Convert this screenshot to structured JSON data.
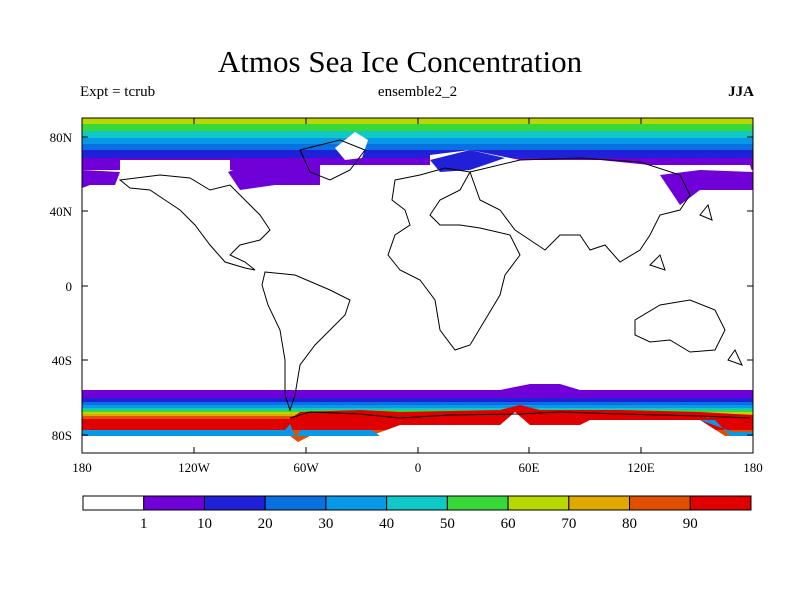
{
  "title": "Atmos Sea Ice Concentration",
  "expt_label": "Expt = tcrub",
  "run_label": "ensemble2_2",
  "season_label": "JJA",
  "lat_ticks": [
    "80N",
    "40N",
    "0",
    "40S",
    "80S"
  ],
  "lon_ticks": [
    "180",
    "120W",
    "60W",
    "0",
    "60E",
    "120E",
    "180"
  ],
  "colorbar": {
    "labels": [
      "1",
      "10",
      "20",
      "30",
      "40",
      "50",
      "60",
      "70",
      "80",
      "90"
    ],
    "colors": [
      "#ffffff",
      "#7000d8",
      "#2020d8",
      "#0870e0",
      "#0898e8",
      "#10c8c8",
      "#38d838",
      "#b8d800",
      "#e0a800",
      "#e05000",
      "#e00000"
    ]
  },
  "colors": {
    "c1": "#7000d8",
    "c10": "#2020d8",
    "c20": "#0870e0",
    "c30": "#0898e8",
    "c40": "#10c8c8",
    "c50": "#38d838",
    "c60": "#b8d800",
    "c70": "#e0a800",
    "c80": "#e05000",
    "c90": "#e00000"
  }
}
